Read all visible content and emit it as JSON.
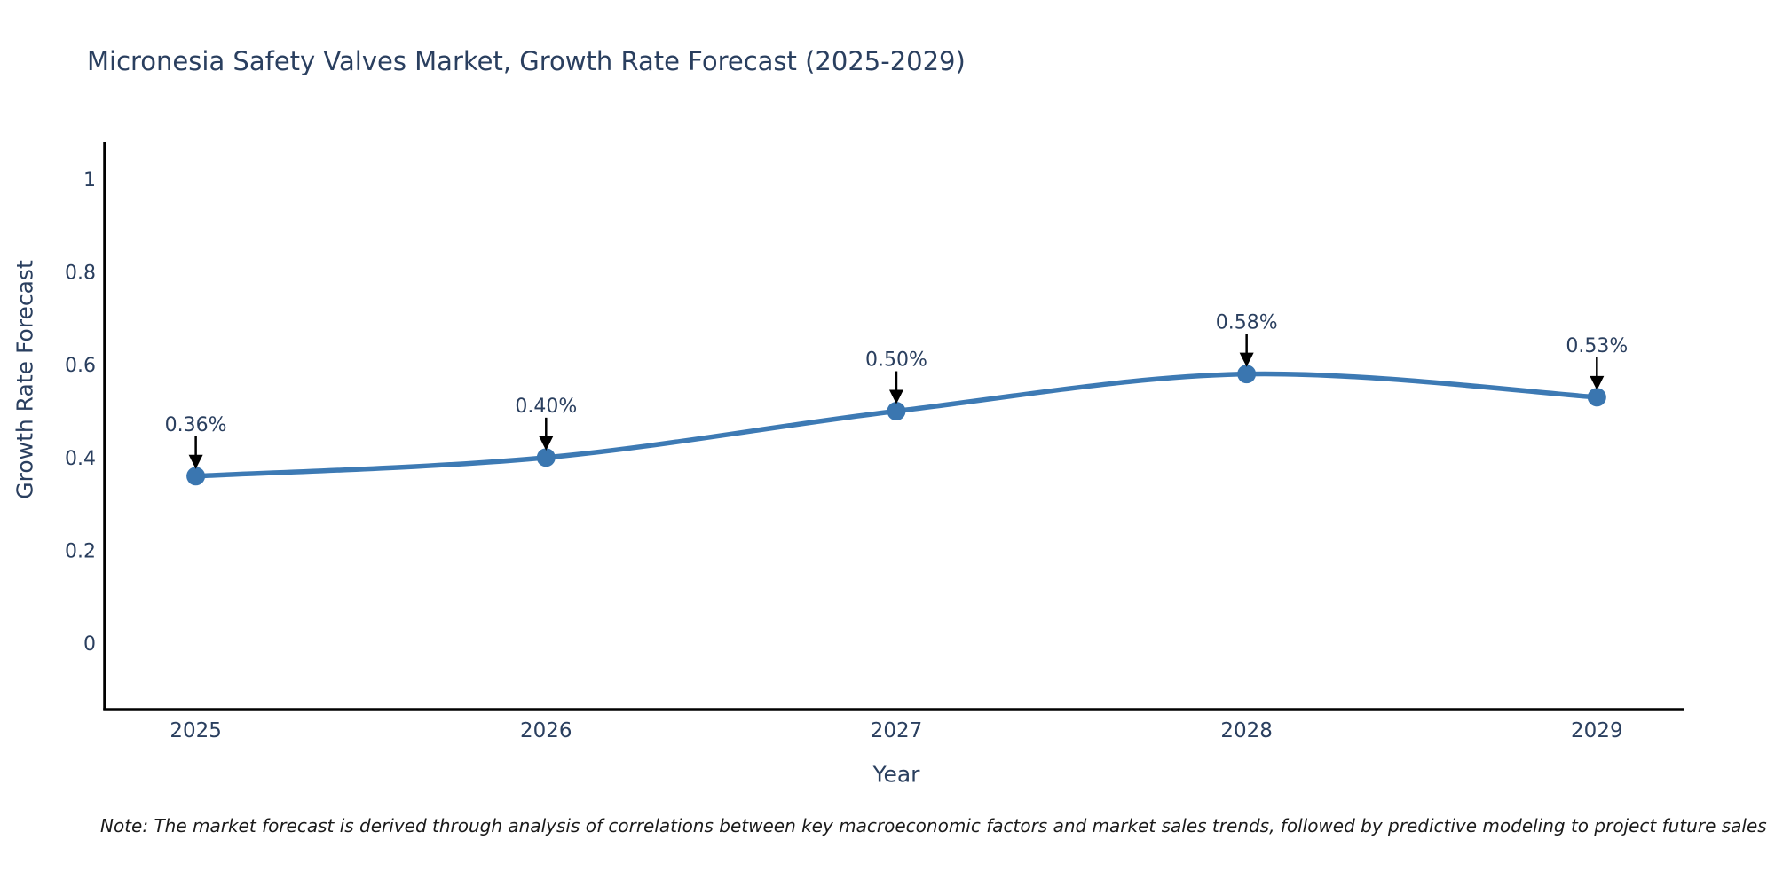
{
  "title": "Micronesia Safety Valves Market, Growth Rate Forecast (2025-2029)",
  "note": "Note: The market forecast is derived through analysis of correlations between key macroeconomic factors and market sales trends, followed by predictive modeling to project future sales",
  "colors": {
    "line": "#3d7ab4",
    "marker": "#3a76b0",
    "axis_line": "#000000",
    "text": "#2a3f5f",
    "annotation_text": "#2a3f5f",
    "arrow": "#000000",
    "note_text": "#1a1a1a",
    "background": "#ffffff"
  },
  "chart_data": {
    "type": "line",
    "title": "Micronesia Safety Valves Market, Growth Rate Forecast (2025-2029)",
    "xlabel": "Year",
    "ylabel": "Growth Rate Forecast",
    "x": [
      2025,
      2026,
      2027,
      2028,
      2029
    ],
    "x_tick_labels": [
      "2025",
      "2026",
      "2027",
      "2028",
      "2029"
    ],
    "values": [
      0.36,
      0.4,
      0.5,
      0.58,
      0.53
    ],
    "point_labels": [
      "0.36%",
      "0.40%",
      "0.50%",
      "0.58%",
      "0.53%"
    ],
    "y_ticks": [
      0,
      0.2,
      0.4,
      0.6,
      0.8,
      1
    ],
    "y_tick_labels": [
      "0",
      "0.2",
      "0.4",
      "0.6",
      "0.8",
      "1"
    ],
    "xlim": [
      2024.74,
      2029.25
    ],
    "ylim": [
      -0.143,
      1.08
    ],
    "grid": false,
    "legend_position": "none",
    "line_shape": "spline",
    "annotation_style": "arrow-down-to-point"
  }
}
